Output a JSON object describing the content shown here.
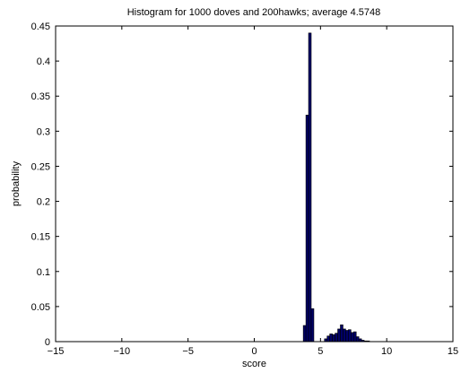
{
  "chart_data": {
    "type": "bar",
    "title": "Histogram for 1000 doves and 200hawks; average 4.5748",
    "xlabel": "score",
    "ylabel": "probability",
    "xlim": [
      -15,
      15
    ],
    "ylim": [
      0,
      0.45
    ],
    "x_ticks": [
      -15,
      -10,
      -5,
      0,
      5,
      10,
      15
    ],
    "y_ticks": [
      0,
      0.05,
      0.1,
      0.15,
      0.2,
      0.25,
      0.3,
      0.35,
      0.4,
      0.45
    ],
    "x_tick_labels": [
      "−15",
      "−10",
      "−5",
      "0",
      "5",
      "10",
      "15"
    ],
    "y_tick_labels": [
      "0",
      "0.05",
      "0.1",
      "0.15",
      "0.2",
      "0.25",
      "0.3",
      "0.35",
      "0.4",
      "0.45"
    ],
    "grid": false,
    "bar_width": 0.2,
    "bar_color": "#000066",
    "bar_edge_color": "#000000",
    "bins": [
      {
        "x": 3.8,
        "y": 0.023
      },
      {
        "x": 4.0,
        "y": 0.323
      },
      {
        "x": 4.2,
        "y": 0.44
      },
      {
        "x": 4.4,
        "y": 0.047
      },
      {
        "x": 5.4,
        "y": 0.004
      },
      {
        "x": 5.6,
        "y": 0.008
      },
      {
        "x": 5.8,
        "y": 0.011
      },
      {
        "x": 6.0,
        "y": 0.01
      },
      {
        "x": 6.2,
        "y": 0.012
      },
      {
        "x": 6.4,
        "y": 0.018
      },
      {
        "x": 6.6,
        "y": 0.024
      },
      {
        "x": 6.8,
        "y": 0.018
      },
      {
        "x": 7.0,
        "y": 0.016
      },
      {
        "x": 7.2,
        "y": 0.017
      },
      {
        "x": 7.4,
        "y": 0.013
      },
      {
        "x": 7.6,
        "y": 0.014
      },
      {
        "x": 7.8,
        "y": 0.007
      },
      {
        "x": 8.0,
        "y": 0.004
      },
      {
        "x": 8.2,
        "y": 0.002
      },
      {
        "x": 8.4,
        "y": 0.001
      },
      {
        "x": 8.6,
        "y": 0.001
      }
    ]
  }
}
